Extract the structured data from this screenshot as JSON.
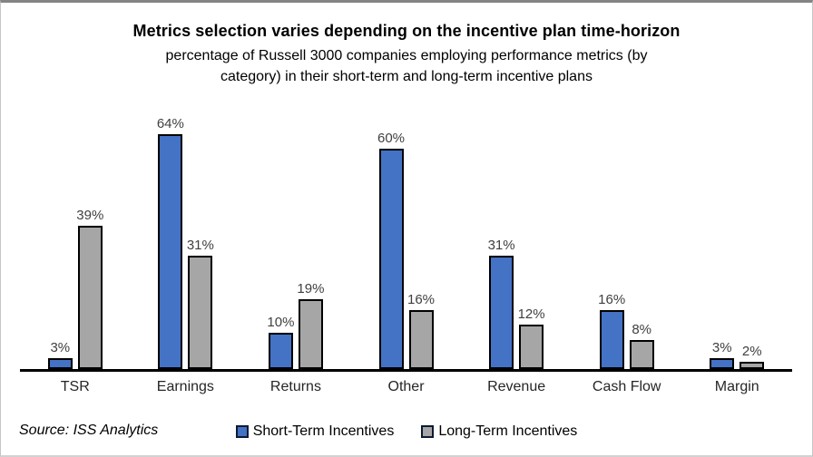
{
  "chart_data": {
    "type": "bar",
    "title": "Metrics selection varies depending on the incentive plan time-horizon",
    "subtitle": "percentage of Russell 3000 companies employing performance metrics (by category) in their short-term and long-term incentive plans",
    "categories": [
      "TSR",
      "Earnings",
      "Returns",
      "Other",
      "Revenue",
      "Cash Flow",
      "Margin"
    ],
    "series": [
      {
        "name": "Short-Term Incentives",
        "color": "#4472C4",
        "values": [
          3,
          64,
          10,
          60,
          31,
          16,
          3
        ]
      },
      {
        "name": "Long-Term Incentives",
        "color": "#A6A6A6",
        "values": [
          39,
          31,
          19,
          16,
          12,
          8,
          2
        ]
      }
    ],
    "value_suffix": "%",
    "ylim": [
      0,
      70
    ],
    "grid": false,
    "legend_position": "bottom",
    "axis_color": "#000000",
    "bar_border_color": "#000000",
    "value_label_color": "#404040",
    "source": "Source: ISS Analytics"
  }
}
